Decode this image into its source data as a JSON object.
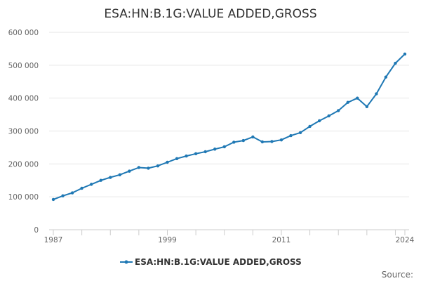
{
  "chart_data": {
    "type": "line",
    "title": "ESA:HN:B.1G:VALUE ADDED,GROSS",
    "xlabel": "",
    "ylabel": "",
    "x_ticks": [
      "1987",
      "1999",
      "2011",
      "2024"
    ],
    "y_ticks": [
      "0",
      "100 000",
      "200 000",
      "300 000",
      "400 000",
      "500 000",
      "600 000"
    ],
    "ylim": [
      0,
      600000
    ],
    "xlim": [
      1987,
      2024
    ],
    "grid": "horizontal",
    "legend_position": "bottom",
    "series": [
      {
        "name": "ESA:HN:B.1G:VALUE ADDED,GROSS",
        "color": "#1f78b4",
        "x": [
          1987,
          1988,
          1989,
          1990,
          1991,
          1992,
          1993,
          1994,
          1995,
          1996,
          1997,
          1998,
          1999,
          2000,
          2001,
          2002,
          2003,
          2004,
          2005,
          2006,
          2007,
          2008,
          2009,
          2010,
          2011,
          2012,
          2013,
          2014,
          2015,
          2016,
          2017,
          2018,
          2019,
          2020,
          2021,
          2022,
          2023,
          2024
        ],
        "values": [
          92000,
          103000,
          112000,
          126000,
          138000,
          150000,
          159000,
          167000,
          178000,
          189000,
          187000,
          194000,
          205000,
          216000,
          224000,
          231000,
          237000,
          245000,
          252000,
          266000,
          271000,
          282000,
          267000,
          268000,
          273000,
          286000,
          295000,
          314000,
          331000,
          346000,
          362000,
          387000,
          400000,
          374000,
          413000,
          464000,
          506000,
          534000
        ]
      }
    ]
  },
  "footer": {
    "source_label": "Source:"
  }
}
